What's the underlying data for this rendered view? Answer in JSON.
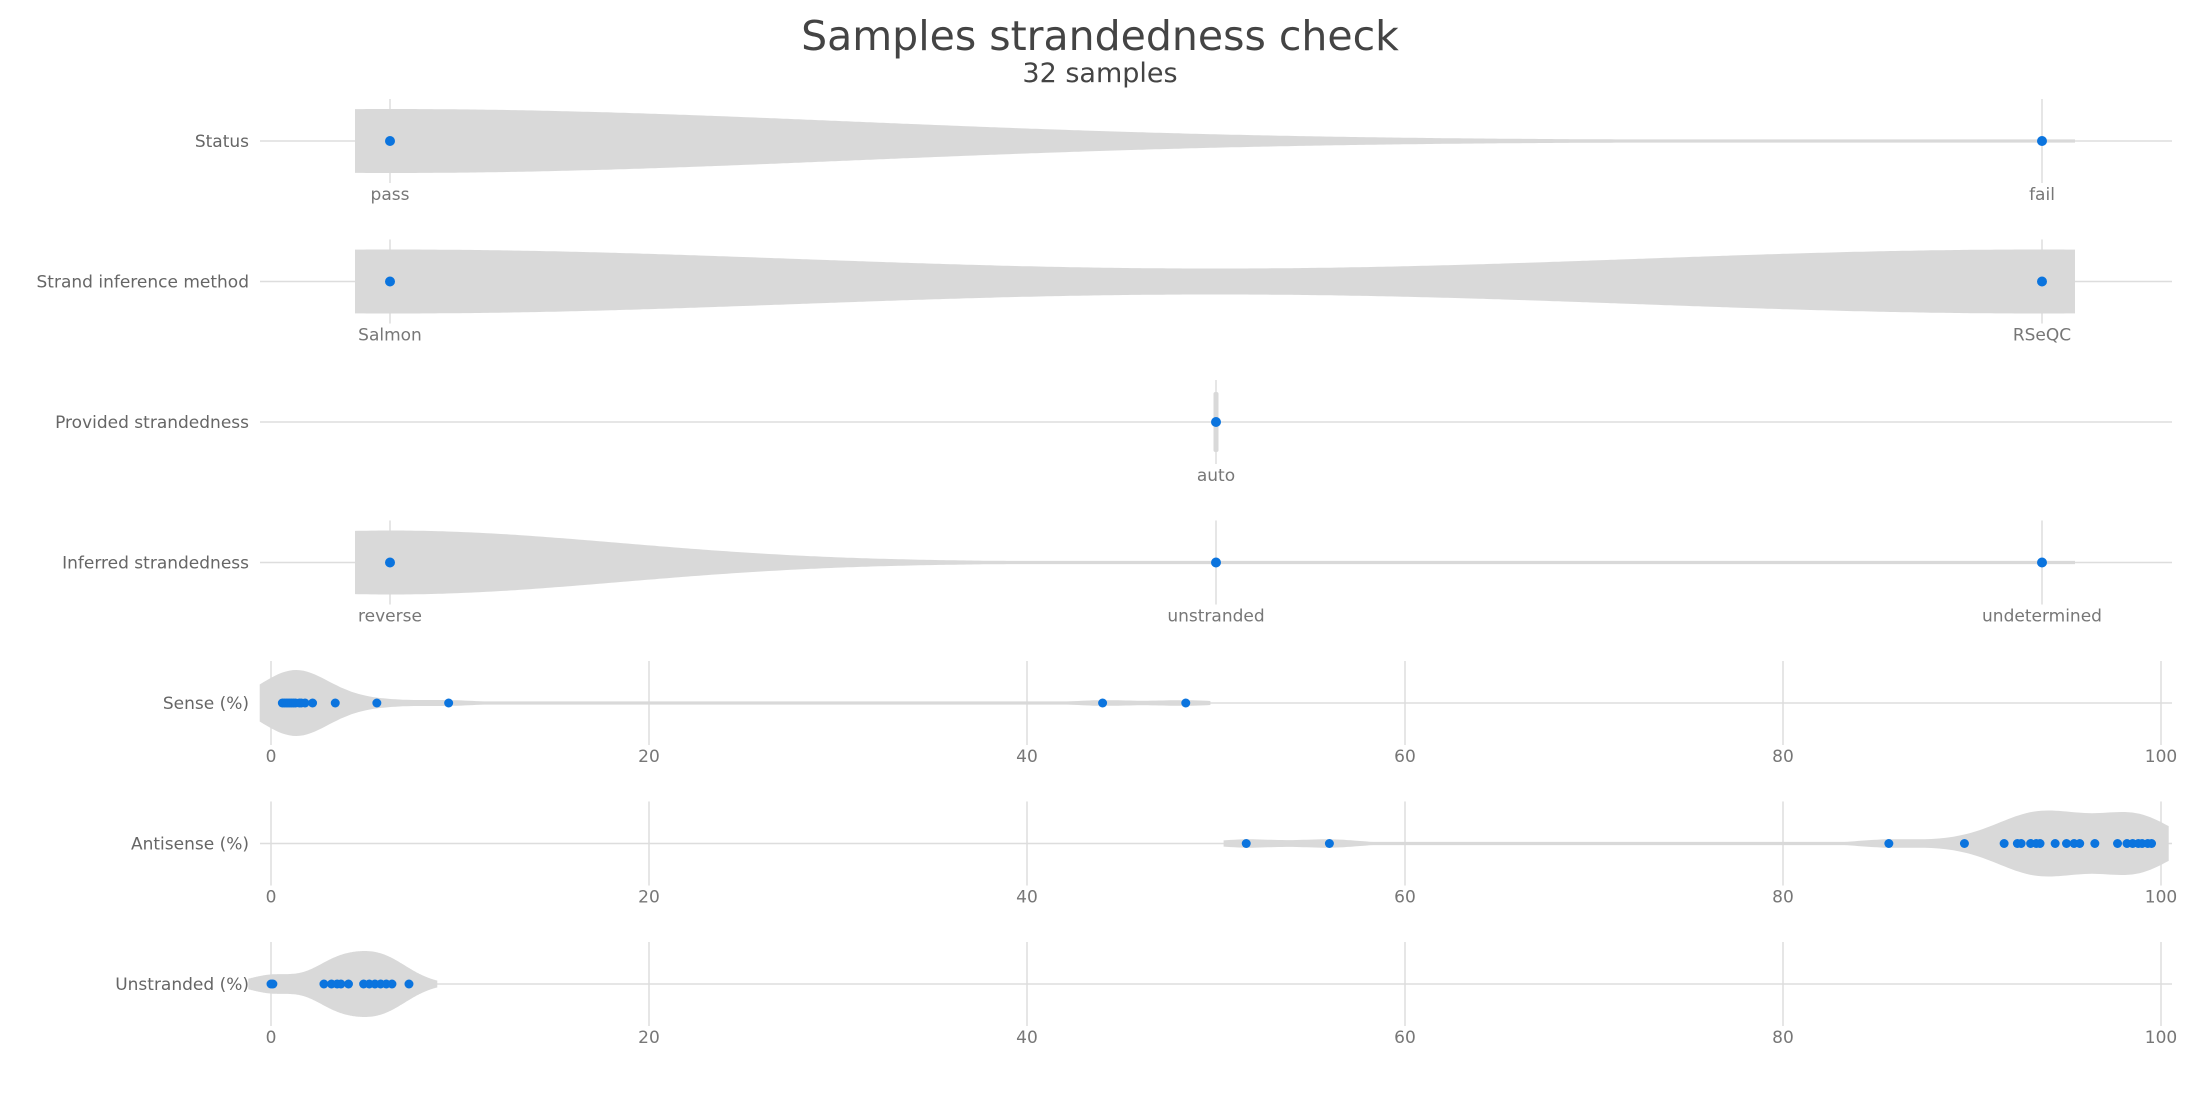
{
  "title": "Samples strandedness check",
  "subtitle": "32 samples",
  "colors": {
    "point": "#0b74de",
    "violin": "#d9d9d9",
    "line": "#dddddd",
    "label": "#666666"
  },
  "chart_data": {
    "type": "violin",
    "title": "Samples strandedness check",
    "subtitle": "32 samples",
    "grid": true,
    "rows": [
      {
        "label": "Status",
        "kind": "categorical",
        "categories": [
          "pass",
          "fail"
        ],
        "counts": [
          31,
          1
        ]
      },
      {
        "label": "Strand inference method",
        "kind": "categorical",
        "categories": [
          "Salmon",
          "RSeQC"
        ],
        "counts": [
          16,
          16
        ]
      },
      {
        "label": "Provided strandedness",
        "kind": "categorical",
        "categories": [
          "auto"
        ],
        "counts": [
          32
        ]
      },
      {
        "label": "Inferred strandedness",
        "kind": "categorical",
        "categories": [
          "reverse",
          "unstranded",
          "undetermined"
        ],
        "counts": [
          30,
          1,
          1
        ]
      },
      {
        "label": "Sense (%)",
        "kind": "numeric",
        "xlim": [
          0,
          100
        ],
        "ticks": [
          0,
          20,
          40,
          60,
          80,
          100
        ],
        "values": [
          0.6,
          0.7,
          0.8,
          0.9,
          1.0,
          1.1,
          1.2,
          1.3,
          1.5,
          1.6,
          1.8,
          2.2,
          3.4,
          5.6,
          9.4,
          44,
          48.4
        ]
      },
      {
        "label": "Antisense (%)",
        "kind": "numeric",
        "xlim": [
          0,
          100
        ],
        "ticks": [
          0,
          20,
          40,
          60,
          80,
          100
        ],
        "values": [
          51.6,
          56,
          85.6,
          89.6,
          91.7,
          92.4,
          92.6,
          93.1,
          93.4,
          93.6,
          94.4,
          95,
          95.4,
          95.7,
          96.5,
          97.7,
          98.2,
          98.5,
          98.8,
          99,
          99.3,
          99.5
        ]
      },
      {
        "label": "Unstranded (%)",
        "kind": "numeric",
        "xlim": [
          0,
          100
        ],
        "ticks": [
          0,
          20,
          40,
          60,
          80,
          100
        ],
        "values": [
          0,
          0.1,
          2.8,
          3.2,
          3.5,
          3.7,
          4.1,
          4.9,
          5.2,
          5.5,
          5.8,
          6.1,
          6.4,
          7.3
        ]
      }
    ]
  }
}
